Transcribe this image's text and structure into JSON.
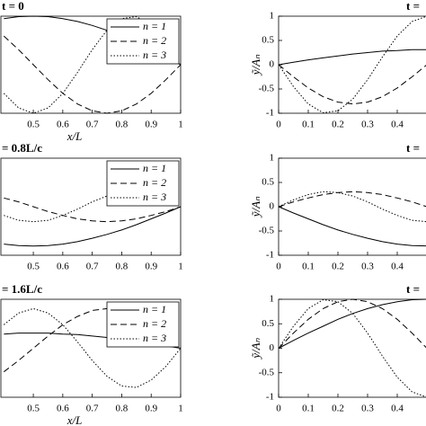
{
  "chart_data": [
    {
      "type": "line",
      "title": "t = 0",
      "xlabel": "x/L",
      "legend": "upper right",
      "x": [
        0.4,
        0.45,
        0.5,
        0.55,
        0.6,
        0.65,
        0.7,
        0.75,
        0.8,
        0.85,
        0.9,
        0.95,
        1
      ],
      "xlim": [
        0.39,
        1
      ],
      "xticks": [
        0.5,
        0.6,
        0.7,
        0.8,
        0.9,
        1
      ],
      "ylim": [
        -1,
        1
      ],
      "series": [
        {
          "name": "n = 1",
          "color": "#000000",
          "style": "solid",
          "values": [
            0.95,
            0.99,
            1,
            0.99,
            0.95,
            0.89,
            0.81,
            0.71,
            0.59,
            0.45,
            0.31,
            0.16,
            0
          ]
        },
        {
          "name": "n = 2",
          "color": "#000000",
          "style": "dashed",
          "values": [
            0.59,
            0.31,
            0,
            -0.31,
            -0.59,
            -0.81,
            -0.95,
            -1,
            -0.95,
            -0.81,
            -0.59,
            -0.31,
            0
          ]
        },
        {
          "name": "n = 3",
          "color": "#000000",
          "style": "dotted",
          "values": [
            -0.59,
            -0.89,
            -1,
            -0.89,
            -0.59,
            -0.16,
            0.31,
            0.71,
            0.95,
            0.99,
            0.81,
            0.45,
            0
          ]
        }
      ]
    },
    {
      "type": "line",
      "title": "t =",
      "ylabel": "ỹ/Aₙ",
      "x": [
        0,
        0.05,
        0.1,
        0.15,
        0.2,
        0.25,
        0.3,
        0.35,
        0.4,
        0.45,
        0.5
      ],
      "xlim": [
        0,
        0.5
      ],
      "xticks": [
        0,
        0.1,
        0.2,
        0.3,
        0.4
      ],
      "ylim": [
        -1,
        1
      ],
      "yticks": [
        -1,
        -0.5,
        0,
        0.5,
        1
      ],
      "series": [
        {
          "color": "#000000",
          "style": "solid",
          "values": [
            0,
            0.05,
            0.1,
            0.14,
            0.18,
            0.22,
            0.25,
            0.28,
            0.29,
            0.31,
            0.31
          ]
        },
        {
          "color": "#000000",
          "style": "dashed",
          "values": [
            0,
            -0.25,
            -0.48,
            -0.66,
            -0.77,
            -0.81,
            -0.77,
            -0.66,
            -0.48,
            -0.25,
            0
          ]
        },
        {
          "color": "#000000",
          "style": "dotted",
          "values": [
            0,
            -0.45,
            -0.81,
            -0.99,
            -0.95,
            -0.71,
            -0.31,
            0.16,
            0.59,
            0.89,
            1
          ]
        }
      ]
    },
    {
      "type": "line",
      "title": "= 0.8L/c",
      "legend": "upper right",
      "x": [
        0.4,
        0.45,
        0.5,
        0.55,
        0.6,
        0.65,
        0.7,
        0.75,
        0.8,
        0.85,
        0.9,
        0.95,
        1
      ],
      "xlim": [
        0.39,
        1
      ],
      "xticks": [
        0.5,
        0.6,
        0.7,
        0.8,
        0.9,
        1
      ],
      "ylim": [
        -1,
        1
      ],
      "series": [
        {
          "name": "n = 1",
          "color": "#000000",
          "style": "solid",
          "values": [
            -0.77,
            -0.8,
            -0.81,
            -0.8,
            -0.77,
            -0.72,
            -0.65,
            -0.57,
            -0.48,
            -0.37,
            -0.25,
            -0.13,
            0
          ]
        },
        {
          "name": "n = 2",
          "color": "#000000",
          "style": "dashed",
          "values": [
            0.18,
            0.1,
            0,
            -0.1,
            -0.18,
            -0.25,
            -0.29,
            -0.31,
            -0.29,
            -0.25,
            -0.18,
            -0.1,
            0
          ]
        },
        {
          "name": "n = 3",
          "color": "#000000",
          "style": "dotted",
          "values": [
            -0.18,
            -0.28,
            -0.31,
            -0.28,
            -0.18,
            -0.05,
            0.1,
            0.22,
            0.29,
            0.31,
            0.25,
            0.14,
            0
          ]
        }
      ]
    },
    {
      "type": "line",
      "title": "t =",
      "ylabel": "ỹ/Aₙ",
      "x": [
        0,
        0.05,
        0.1,
        0.15,
        0.2,
        0.25,
        0.3,
        0.35,
        0.4,
        0.45,
        0.5
      ],
      "xlim": [
        0,
        0.5
      ],
      "xticks": [
        0,
        0.1,
        0.2,
        0.3,
        0.4
      ],
      "ylim": [
        -1,
        1
      ],
      "yticks": [
        -1,
        -0.5,
        0,
        0.5,
        1
      ],
      "series": [
        {
          "color": "#000000",
          "style": "solid",
          "values": [
            0,
            -0.13,
            -0.25,
            -0.37,
            -0.48,
            -0.57,
            -0.65,
            -0.72,
            -0.77,
            -0.8,
            -0.81
          ]
        },
        {
          "color": "#000000",
          "style": "dashed",
          "values": [
            0,
            0.1,
            0.18,
            0.25,
            0.29,
            0.31,
            0.29,
            0.25,
            0.18,
            0.1,
            0
          ]
        },
        {
          "color": "#000000",
          "style": "dotted",
          "values": [
            0,
            0.14,
            0.25,
            0.31,
            0.29,
            0.22,
            0.1,
            -0.05,
            -0.18,
            -0.28,
            -0.31
          ]
        }
      ]
    },
    {
      "type": "line",
      "title": "= 1.6L/c",
      "xlabel": "x/L",
      "legend": "upper right",
      "x": [
        0.4,
        0.45,
        0.5,
        0.55,
        0.6,
        0.65,
        0.7,
        0.75,
        0.8,
        0.85,
        0.9,
        0.95,
        1
      ],
      "xlim": [
        0.39,
        1
      ],
      "xticks": [
        0.5,
        0.6,
        0.7,
        0.8,
        0.9,
        1
      ],
      "ylim": [
        -1,
        1
      ],
      "series": [
        {
          "name": "n = 1",
          "color": "#000000",
          "style": "solid",
          "values": [
            0.29,
            0.31,
            0.31,
            0.31,
            0.29,
            0.28,
            0.25,
            0.22,
            0.18,
            0.14,
            0.1,
            0.05,
            0
          ]
        },
        {
          "name": "n = 2",
          "color": "#000000",
          "style": "dashed",
          "values": [
            -0.48,
            -0.25,
            0,
            0.25,
            0.48,
            0.65,
            0.77,
            0.81,
            0.77,
            0.65,
            0.48,
            0.25,
            0
          ]
        },
        {
          "name": "n = 3",
          "color": "#000000",
          "style": "dotted",
          "values": [
            0.48,
            0.72,
            0.81,
            0.72,
            0.48,
            0.13,
            -0.25,
            -0.57,
            -0.77,
            -0.8,
            -0.65,
            -0.37,
            0
          ]
        }
      ]
    },
    {
      "type": "line",
      "title": "t =",
      "ylabel": "ỹ/Aₙ",
      "x": [
        0,
        0.05,
        0.1,
        0.15,
        0.2,
        0.25,
        0.3,
        0.35,
        0.4,
        0.45,
        0.5
      ],
      "xlim": [
        0,
        0.5
      ],
      "xticks": [
        0,
        0.1,
        0.2,
        0.3,
        0.4
      ],
      "ylim": [
        -1,
        1
      ],
      "yticks": [
        -1,
        -0.5,
        0,
        0.5,
        1
      ],
      "series": [
        {
          "color": "#000000",
          "style": "solid",
          "values": [
            0,
            0.16,
            0.31,
            0.45,
            0.59,
            0.71,
            0.81,
            0.89,
            0.95,
            0.99,
            1
          ]
        },
        {
          "color": "#000000",
          "style": "dashed",
          "values": [
            0,
            0.31,
            0.59,
            0.81,
            0.95,
            1,
            0.95,
            0.81,
            0.59,
            0.31,
            0
          ]
        },
        {
          "color": "#000000",
          "style": "dotted",
          "values": [
            0,
            0.45,
            0.81,
            0.99,
            0.95,
            0.71,
            0.31,
            -0.16,
            -0.59,
            -0.89,
            -1
          ]
        }
      ]
    }
  ]
}
